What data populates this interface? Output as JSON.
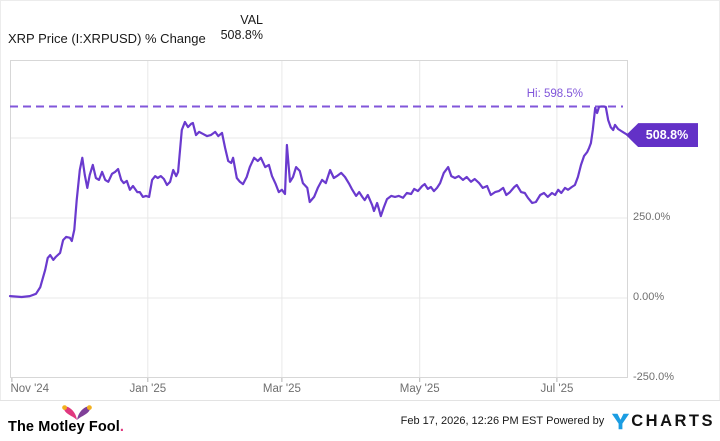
{
  "header": {
    "title": "XRP Price (I:XRPUSD) % Change",
    "val_label": "VAL",
    "val_value": "508.8%"
  },
  "chart_data": {
    "type": "line",
    "title": "XRP Price (I:XRPUSD) % Change",
    "ylabel": "% Change",
    "ylim": [
      -250,
      743.75
    ],
    "grid": true,
    "y_ticks": [
      {
        "label": "250.0%",
        "value": 250
      },
      {
        "label": "0.00%",
        "value": 0
      },
      {
        "label": "-250.0%",
        "value": -250
      }
    ],
    "y_gridlines": [
      500,
      250,
      0
    ],
    "x_gridlines": [
      0.223,
      0.44,
      0.663,
      0.885
    ],
    "x_tick_marks": [
      0.003,
      0.223,
      0.44,
      0.663,
      0.885
    ],
    "x_labels": [
      {
        "label": "Nov '24",
        "f": 0.032
      },
      {
        "label": "Jan '25",
        "f": 0.223
      },
      {
        "label": "Mar '25",
        "f": 0.44
      },
      {
        "label": "May '25",
        "f": 0.663
      },
      {
        "label": "Jul '25",
        "f": 0.885
      }
    ],
    "hi": {
      "label": "Hi: 598.5%",
      "value": 598.5
    },
    "last": {
      "label": "508.8%",
      "value": 508.8
    },
    "series": [
      {
        "name": "XRP Price (I:XRPUSD) % Change",
        "color": "#6a3ace",
        "points": [
          [
            0.0,
            6
          ],
          [
            0.019,
            3
          ],
          [
            0.032,
            6
          ],
          [
            0.042,
            13
          ],
          [
            0.049,
            34
          ],
          [
            0.057,
            88
          ],
          [
            0.061,
            125
          ],
          [
            0.065,
            134
          ],
          [
            0.07,
            119
          ],
          [
            0.074,
            128
          ],
          [
            0.081,
            141
          ],
          [
            0.086,
            181
          ],
          [
            0.091,
            191
          ],
          [
            0.097,
            188
          ],
          [
            0.1,
            178
          ],
          [
            0.104,
            213
          ],
          [
            0.108,
            306
          ],
          [
            0.113,
            400
          ],
          [
            0.117,
            438
          ],
          [
            0.121,
            384
          ],
          [
            0.125,
            344
          ],
          [
            0.129,
            384
          ],
          [
            0.134,
            416
          ],
          [
            0.139,
            375
          ],
          [
            0.144,
            369
          ],
          [
            0.149,
            394
          ],
          [
            0.154,
            369
          ],
          [
            0.159,
            363
          ],
          [
            0.165,
            388
          ],
          [
            0.17,
            394
          ],
          [
            0.175,
            403
          ],
          [
            0.18,
            369
          ],
          [
            0.184,
            359
          ],
          [
            0.189,
            366
          ],
          [
            0.194,
            338
          ],
          [
            0.199,
            350
          ],
          [
            0.206,
            331
          ],
          [
            0.21,
            331
          ],
          [
            0.215,
            316
          ],
          [
            0.22,
            319
          ],
          [
            0.225,
            316
          ],
          [
            0.23,
            369
          ],
          [
            0.235,
            381
          ],
          [
            0.239,
            375
          ],
          [
            0.244,
            381
          ],
          [
            0.249,
            372
          ],
          [
            0.254,
            353
          ],
          [
            0.259,
            363
          ],
          [
            0.264,
            400
          ],
          [
            0.269,
            381
          ],
          [
            0.272,
            394
          ],
          [
            0.278,
            525
          ],
          [
            0.283,
            550
          ],
          [
            0.288,
            534
          ],
          [
            0.293,
            544
          ],
          [
            0.296,
            547
          ],
          [
            0.301,
            509
          ],
          [
            0.306,
            519
          ],
          [
            0.312,
            513
          ],
          [
            0.319,
            506
          ],
          [
            0.325,
            509
          ],
          [
            0.332,
            519
          ],
          [
            0.337,
            506
          ],
          [
            0.343,
            516
          ],
          [
            0.348,
            469
          ],
          [
            0.353,
            428
          ],
          [
            0.358,
            422
          ],
          [
            0.361,
            438
          ],
          [
            0.367,
            375
          ],
          [
            0.372,
            363
          ],
          [
            0.377,
            356
          ],
          [
            0.383,
            378
          ],
          [
            0.388,
            409
          ],
          [
            0.395,
            438
          ],
          [
            0.401,
            428
          ],
          [
            0.406,
            438
          ],
          [
            0.413,
            409
          ],
          [
            0.419,
            416
          ],
          [
            0.424,
            381
          ],
          [
            0.43,
            356
          ],
          [
            0.435,
            331
          ],
          [
            0.44,
            338
          ],
          [
            0.445,
            325
          ],
          [
            0.448,
            478
          ],
          [
            0.453,
            363
          ],
          [
            0.458,
            378
          ],
          [
            0.463,
            409
          ],
          [
            0.469,
            397
          ],
          [
            0.474,
            359
          ],
          [
            0.481,
            344
          ],
          [
            0.485,
            300
          ],
          [
            0.492,
            316
          ],
          [
            0.498,
            344
          ],
          [
            0.505,
            369
          ],
          [
            0.511,
            359
          ],
          [
            0.518,
            400
          ],
          [
            0.524,
            375
          ],
          [
            0.529,
            381
          ],
          [
            0.536,
            391
          ],
          [
            0.542,
            378
          ],
          [
            0.549,
            356
          ],
          [
            0.553,
            341
          ],
          [
            0.56,
            319
          ],
          [
            0.565,
            331
          ],
          [
            0.57,
            316
          ],
          [
            0.574,
            306
          ],
          [
            0.579,
            322
          ],
          [
            0.586,
            291
          ],
          [
            0.589,
            272
          ],
          [
            0.594,
            297
          ],
          [
            0.597,
            278
          ],
          [
            0.6,
            256
          ],
          [
            0.605,
            284
          ],
          [
            0.61,
            309
          ],
          [
            0.617,
            319
          ],
          [
            0.623,
            316
          ],
          [
            0.629,
            319
          ],
          [
            0.636,
            313
          ],
          [
            0.642,
            328
          ],
          [
            0.649,
            325
          ],
          [
            0.654,
            341
          ],
          [
            0.66,
            334
          ],
          [
            0.667,
            350
          ],
          [
            0.671,
            356
          ],
          [
            0.676,
            341
          ],
          [
            0.681,
            347
          ],
          [
            0.686,
            334
          ],
          [
            0.691,
            344
          ],
          [
            0.696,
            359
          ],
          [
            0.702,
            391
          ],
          [
            0.709,
            409
          ],
          [
            0.714,
            381
          ],
          [
            0.72,
            375
          ],
          [
            0.726,
            381
          ],
          [
            0.733,
            369
          ],
          [
            0.739,
            378
          ],
          [
            0.746,
            363
          ],
          [
            0.752,
            372
          ],
          [
            0.759,
            359
          ],
          [
            0.765,
            344
          ],
          [
            0.772,
            350
          ],
          [
            0.778,
            322
          ],
          [
            0.785,
            331
          ],
          [
            0.791,
            334
          ],
          [
            0.798,
            344
          ],
          [
            0.803,
            322
          ],
          [
            0.809,
            331
          ],
          [
            0.816,
            347
          ],
          [
            0.82,
            353
          ],
          [
            0.827,
            331
          ],
          [
            0.833,
            328
          ],
          [
            0.838,
            313
          ],
          [
            0.845,
            297
          ],
          [
            0.851,
            300
          ],
          [
            0.858,
            322
          ],
          [
            0.864,
            328
          ],
          [
            0.87,
            316
          ],
          [
            0.877,
            328
          ],
          [
            0.882,
            322
          ],
          [
            0.887,
            338
          ],
          [
            0.892,
            328
          ],
          [
            0.898,
            344
          ],
          [
            0.903,
            338
          ],
          [
            0.909,
            347
          ],
          [
            0.914,
            353
          ],
          [
            0.919,
            378
          ],
          [
            0.924,
            416
          ],
          [
            0.929,
            444
          ],
          [
            0.934,
            456
          ],
          [
            0.937,
            469
          ],
          [
            0.94,
            484
          ],
          [
            0.943,
            525
          ],
          [
            0.947,
            594
          ],
          [
            0.95,
            578
          ],
          [
            0.953,
            597
          ],
          [
            0.956,
            598.5
          ],
          [
            0.961,
            598.5
          ],
          [
            0.964,
            597
          ],
          [
            0.968,
            556
          ],
          [
            0.972,
            534
          ],
          [
            0.976,
            525
          ],
          [
            0.979,
            541
          ],
          [
            0.984,
            528
          ],
          [
            0.989,
            522
          ],
          [
            0.993,
            517
          ],
          [
            1.0,
            508.8
          ]
        ]
      }
    ]
  },
  "footer": {
    "site_logo": "The Motley Fool",
    "logo_period": ".",
    "timestamp": "Feb 17, 2026, 12:26 PM EST",
    "powered_by": "Powered by",
    "brand_y": "Y",
    "brand_rest": "CHARTS"
  },
  "colors": {
    "line": "#6a3ace",
    "badge": "#6331c7",
    "dash": "#8156da",
    "hi_text": "#8156da",
    "grid": "#e8e8e8",
    "border": "#d7d7d7",
    "tick": "#b5b5b5",
    "axis_text": "#6f6f6f",
    "mf_pink": "#e0387f",
    "mf_purple": "#7f3f98",
    "mf_gold": "#f2b01e",
    "ycharts_blue": "#1b9de2"
  }
}
